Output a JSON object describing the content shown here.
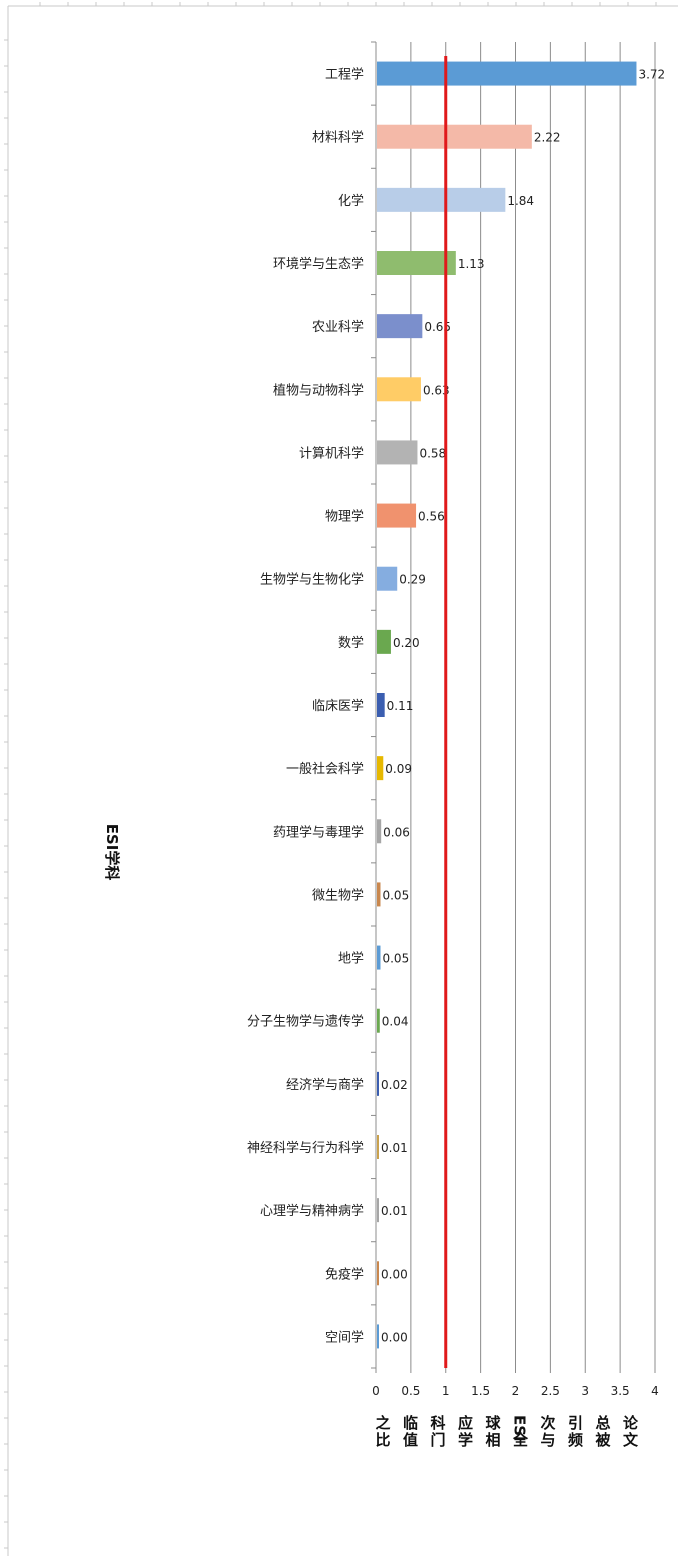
{
  "chart_data": {
    "type": "bar",
    "orientation": "horizontal",
    "categories": [
      "工程学",
      "材料科学",
      "化学",
      "环境学与生态学",
      "农业科学",
      "植物与动物科学",
      "计算机科学",
      "物理学",
      "生物学与生物化学",
      "数学",
      "临床医学",
      "一般社会科学",
      "药理学与毒理学",
      "微生物学",
      "地学",
      "分子生物学与遗传学",
      "经济学与商学",
      "神经科学与行为科学",
      "心理学与精神病学",
      "免疫学",
      "空间学"
    ],
    "values": [
      3.72,
      2.22,
      1.84,
      1.13,
      0.65,
      0.63,
      0.58,
      0.56,
      0.29,
      0.2,
      0.11,
      0.09,
      0.06,
      0.05,
      0.05,
      0.04,
      0.02,
      0.01,
      0.01,
      0.0,
      0.0
    ],
    "value_labels": [
      "3.72",
      "2.22",
      "1.84",
      "1.13",
      "0.65",
      "0.63",
      "0.58",
      "0.56",
      "0.29",
      "0.20",
      "0.11",
      "0.09",
      "0.06",
      "0.05",
      "0.05",
      "0.04",
      "0.02",
      "0.01",
      "0.01",
      "0.00",
      "0.00"
    ],
    "colors": [
      "#5b9bd5",
      "#f4b9a8",
      "#b8cde8",
      "#8fbc6e",
      "#7b8fcc",
      "#ffcc66",
      "#b3b3b3",
      "#f0926e",
      "#85ade0",
      "#6aa84f",
      "#3b5eb0",
      "#e6b800",
      "#a6a6a6",
      "#c9874d",
      "#5b9bd5",
      "#6aa84f",
      "#3b5eb0",
      "#c9a14d",
      "#a6a6a6",
      "#c9874d",
      "#5b9bd5"
    ],
    "xlim": [
      0,
      4
    ],
    "xticks": [
      0,
      0.5,
      1,
      1.5,
      2,
      2.5,
      3,
      3.5,
      4
    ],
    "xtick_labels": [
      "0",
      "0.5",
      "1",
      "1.5",
      "2",
      "2.5",
      "3",
      "3.5",
      "4"
    ],
    "reference_line": {
      "value": 1,
      "color": "#e0191b"
    },
    "ylabel": "ESI学科",
    "xlabel_columns": [
      "之比",
      "临值",
      "科门",
      "应学",
      "球相",
      "ESI全",
      "次与",
      "引频",
      "总被",
      "论文"
    ],
    "grid": true,
    "legend": "none"
  }
}
